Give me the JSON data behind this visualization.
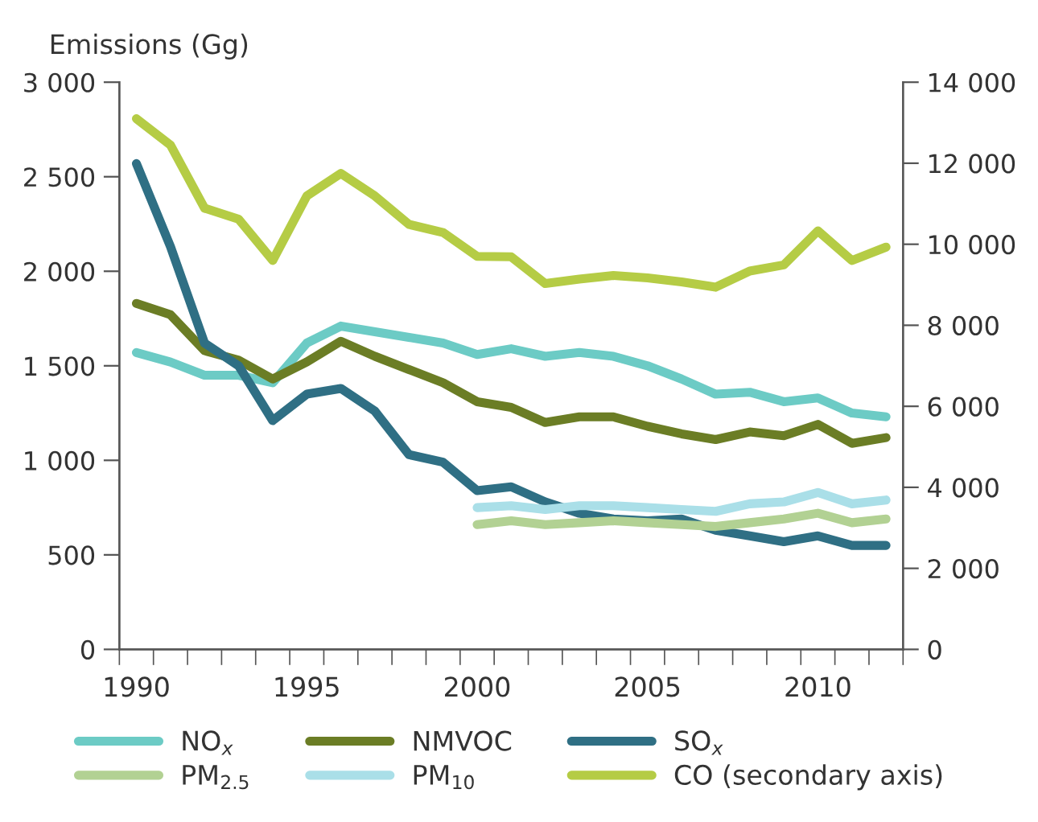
{
  "chart_data": {
    "type": "line",
    "ylabel": "Emissions (Gg)",
    "x": [
      1990,
      1991,
      1992,
      1993,
      1994,
      1995,
      1996,
      1997,
      1998,
      1999,
      2000,
      2001,
      2002,
      2003,
      2004,
      2005,
      2006,
      2007,
      2008,
      2009,
      2010,
      2011,
      2012
    ],
    "xlim": [
      1989.5,
      2012.5
    ],
    "xticks": [
      {
        "value": 1989.5,
        "label": null
      },
      {
        "value": 1990,
        "label": "1990"
      },
      {
        "value": 1990.5,
        "label": null
      },
      {
        "value": 1991.5,
        "label": null
      },
      {
        "value": 1992.5,
        "label": null
      },
      {
        "value": 1993.5,
        "label": null
      },
      {
        "value": 1994.5,
        "label": null
      },
      {
        "value": 1995,
        "label": "1995"
      },
      {
        "value": 1995.5,
        "label": null
      },
      {
        "value": 1996.5,
        "label": null
      },
      {
        "value": 1997.5,
        "label": null
      },
      {
        "value": 1998.5,
        "label": null
      },
      {
        "value": 1999.5,
        "label": null
      },
      {
        "value": 2000,
        "label": "2000"
      },
      {
        "value": 2000.5,
        "label": null
      },
      {
        "value": 2001.5,
        "label": null
      },
      {
        "value": 2002.5,
        "label": null
      },
      {
        "value": 2003.5,
        "label": null
      },
      {
        "value": 2004.5,
        "label": null
      },
      {
        "value": 2005,
        "label": "2005"
      },
      {
        "value": 2005.5,
        "label": null
      },
      {
        "value": 2006.5,
        "label": null
      },
      {
        "value": 2007.5,
        "label": null
      },
      {
        "value": 2008.5,
        "label": null
      },
      {
        "value": 2009.5,
        "label": null
      },
      {
        "value": 2010,
        "label": "2010"
      },
      {
        "value": 2010.5,
        "label": null
      },
      {
        "value": 2011.5,
        "label": null
      },
      {
        "value": 2012.5,
        "label": null
      }
    ],
    "ylim": [
      0,
      3000
    ],
    "yticks": [
      0,
      {
        "value": 500,
        "label": "500"
      },
      {
        "value": 1000,
        "label": "1 000"
      },
      {
        "value": 1500,
        "label": "1 500"
      },
      {
        "value": 2000,
        "label": "2 000"
      },
      {
        "value": 2500,
        "label": "2 500"
      },
      {
        "value": 3000,
        "label": "3 000"
      }
    ],
    "y2lim": [
      0,
      14000
    ],
    "y2ticks": [
      0,
      {
        "value": 2000,
        "label": "2 000"
      },
      {
        "value": 4000,
        "label": "4 000"
      },
      {
        "value": 6000,
        "label": "6 000"
      },
      {
        "value": 8000,
        "label": "8 000"
      },
      {
        "value": 10000,
        "label": "10 000"
      },
      {
        "value": 12000,
        "label": "12 000"
      },
      {
        "value": 14000,
        "label": "14 000"
      }
    ],
    "grid": false,
    "legend": "bottom",
    "marker": "none",
    "line_style": "solid",
    "series": [
      {
        "name": "NO$_{x}$",
        "color": "#6ccbc5",
        "values": [
          1570,
          1520,
          1450,
          1450,
          1410,
          1620,
          1710,
          1680,
          1650,
          1620,
          1560,
          1590,
          1550,
          1570,
          1550,
          1500,
          1430,
          1350,
          1360,
          1310,
          1330,
          1250,
          1230
        ]
      },
      {
        "name": "NMVOC",
        "color": "#6b7d25",
        "values": [
          1830,
          1770,
          1580,
          1530,
          1430,
          1520,
          1630,
          1550,
          1480,
          1410,
          1310,
          1280,
          1200,
          1230,
          1230,
          1180,
          1140,
          1110,
          1150,
          1130,
          1190,
          1090,
          1120
        ]
      },
      {
        "name": "SO$_{x}$",
        "color": "#2f6f84",
        "values": [
          2570,
          2130,
          1620,
          1500,
          1210,
          1350,
          1380,
          1260,
          1030,
          990,
          840,
          860,
          780,
          720,
          690,
          680,
          690,
          630,
          600,
          570,
          600,
          550,
          550
        ]
      },
      {
        "name": "PM$_{2.5}$",
        "color": "#b2d193",
        "values": [
          null,
          null,
          null,
          null,
          null,
          null,
          null,
          null,
          null,
          null,
          660,
          680,
          660,
          670,
          680,
          670,
          660,
          650,
          670,
          690,
          720,
          670,
          690
        ]
      },
      {
        "name": "PM$_{10}$",
        "color": "#aadfe8",
        "values": [
          null,
          null,
          null,
          null,
          null,
          null,
          null,
          null,
          null,
          null,
          750,
          760,
          740,
          760,
          760,
          750,
          740,
          730,
          770,
          780,
          830,
          770,
          790
        ]
      },
      {
        "name": "CO (secondary axis)",
        "color": "#b5cc45",
        "axis": "y2",
        "values": [
          13100,
          12450,
          10890,
          10620,
          9600,
          11190,
          11750,
          11190,
          10490,
          10290,
          9700,
          9690,
          9030,
          9140,
          9230,
          9170,
          9070,
          8940,
          9340,
          9490,
          10330,
          9600,
          9930
        ]
      }
    ]
  }
}
